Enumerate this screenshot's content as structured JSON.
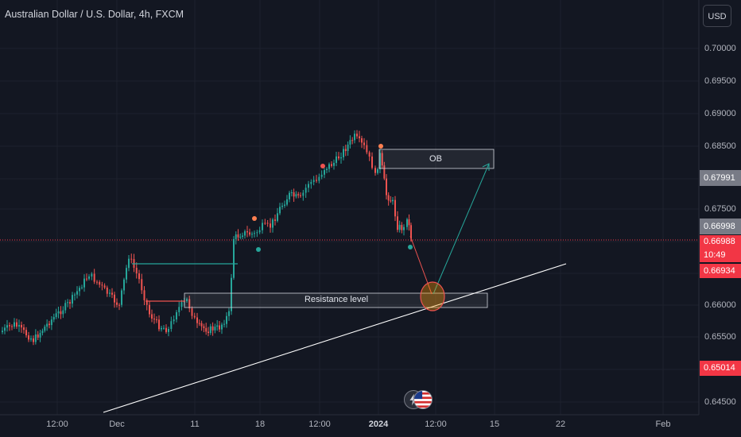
{
  "header": {
    "title": "Australian Dollar / U.S. Dollar, 4h, FXCM",
    "currency_button": "USD"
  },
  "price_axis": {
    "ticks": [
      "0.70000",
      "0.69500",
      "0.69000",
      "0.68500",
      "0.67500",
      "0.66000",
      "0.65500",
      "0.64500"
    ],
    "badges": [
      {
        "label": "0.67991",
        "color": "#787b86"
      },
      {
        "label": "0.66998",
        "color": "#787b86"
      },
      {
        "label": "0.66988",
        "color": "#f23645"
      },
      {
        "label": "10:49",
        "color": "#f23645"
      },
      {
        "label": "0.66934",
        "color": "#f23645"
      },
      {
        "label": "0.65014",
        "color": "#f23645"
      }
    ]
  },
  "time_axis": {
    "ticks": [
      {
        "label": "12:00",
        "bold": false
      },
      {
        "label": "Dec",
        "bold": false
      },
      {
        "label": "11",
        "bold": false
      },
      {
        "label": "18",
        "bold": false
      },
      {
        "label": "12:00",
        "bold": false
      },
      {
        "label": "2024",
        "bold": true
      },
      {
        "label": "12:00",
        "bold": false
      },
      {
        "label": "15",
        "bold": false
      },
      {
        "label": "22",
        "bold": false
      },
      {
        "label": "Feb",
        "bold": false
      }
    ]
  },
  "drawings": {
    "ob_label": "OB",
    "resistance_label": "Resistance level"
  },
  "colors": {
    "up": "#26a69a",
    "down": "#ef5350",
    "background": "#131722",
    "accent": "#f23645"
  },
  "icons": {
    "event_1": "lightning-icon",
    "event_2": "us-flag-icon"
  }
}
